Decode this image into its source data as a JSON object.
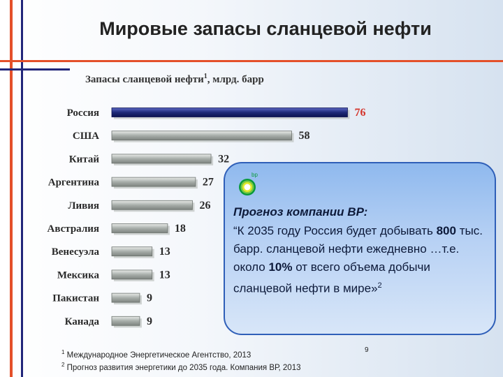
{
  "slide": {
    "title": "Мировые запасы сланцевой нефти",
    "number": "9"
  },
  "chart_data": {
    "type": "bar",
    "orientation": "horizontal",
    "title": "Запасы сланцевой нефти",
    "title_footnote": "1",
    "title_suffix": ", млрд. барр",
    "categories": [
      "Россия",
      "США",
      "Китай",
      "Аргентина",
      "Ливия",
      "Австралия",
      "Венесуэла",
      "Мексика",
      "Пакистан",
      "Канада"
    ],
    "values": [
      76,
      58,
      32,
      27,
      26,
      18,
      13,
      13,
      9,
      9
    ],
    "highlight_category": "Россия",
    "highlight_color": "#1e2a78",
    "bar_color": "#a7ada9",
    "highlight_label_color": "#d4332a"
  },
  "callout": {
    "logo": "bp-helios-logo",
    "logo_text": "bp",
    "heading": "Прогноз компании ВР:",
    "q1": "“К 2035 году Россия будет добывать ",
    "b1": "800",
    "q2": " тыс. барр. сланцевой нефти ежедневно …т.е. около ",
    "b2": "10%",
    "q3": " от всего объема добычи сланцевой нефти в мире»",
    "q_sup": "2"
  },
  "footnotes": [
    {
      "num": "1",
      "text": " Международное Энергетическое Агентство, 2013"
    },
    {
      "num": "2",
      "text": " Прогноз развития энергетики до 2035 года. Компания ВР, 2013"
    }
  ]
}
